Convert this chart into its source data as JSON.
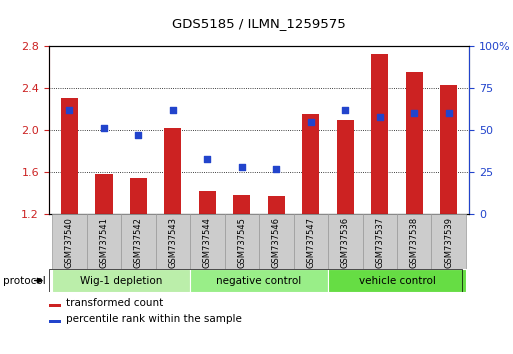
{
  "title": "GDS5185 / ILMN_1259575",
  "samples": [
    "GSM737540",
    "GSM737541",
    "GSM737542",
    "GSM737543",
    "GSM737544",
    "GSM737545",
    "GSM737546",
    "GSM737547",
    "GSM737536",
    "GSM737537",
    "GSM737538",
    "GSM737539"
  ],
  "bar_values": [
    2.31,
    1.58,
    1.54,
    2.02,
    1.42,
    1.38,
    1.37,
    2.15,
    2.1,
    2.72,
    2.55,
    2.43
  ],
  "dot_percentiles": [
    62,
    51,
    47,
    62,
    33,
    28,
    27,
    55,
    62,
    58,
    60,
    60
  ],
  "ylim_left": [
    1.2,
    2.8
  ],
  "ylim_right": [
    0,
    100
  ],
  "yticks_left": [
    1.2,
    1.6,
    2.0,
    2.4,
    2.8
  ],
  "yticks_right": [
    0,
    25,
    50,
    75,
    100
  ],
  "ytick_labels_left": [
    "1.2",
    "1.6",
    "2.0",
    "2.4",
    "2.8"
  ],
  "ytick_labels_right": [
    "0",
    "25",
    "50",
    "75",
    "100%"
  ],
  "bar_color": "#cc2222",
  "dot_color": "#2244cc",
  "bar_bottom": 1.2,
  "groups": [
    {
      "label": "Wig-1 depletion",
      "start": 0,
      "end": 4
    },
    {
      "label": "negative control",
      "start": 4,
      "end": 8
    },
    {
      "label": "vehicle control",
      "start": 8,
      "end": 12
    }
  ],
  "group_colors": [
    "#bbeeaa",
    "#99ee88",
    "#66dd44"
  ],
  "protocol_label": "protocol",
  "legend_bar_label": "transformed count",
  "legend_dot_label": "percentile rank within the sample",
  "left_tick_color": "#cc2222",
  "right_tick_color": "#2244cc",
  "sample_box_color": "#cccccc",
  "sample_box_edge": "#999999"
}
